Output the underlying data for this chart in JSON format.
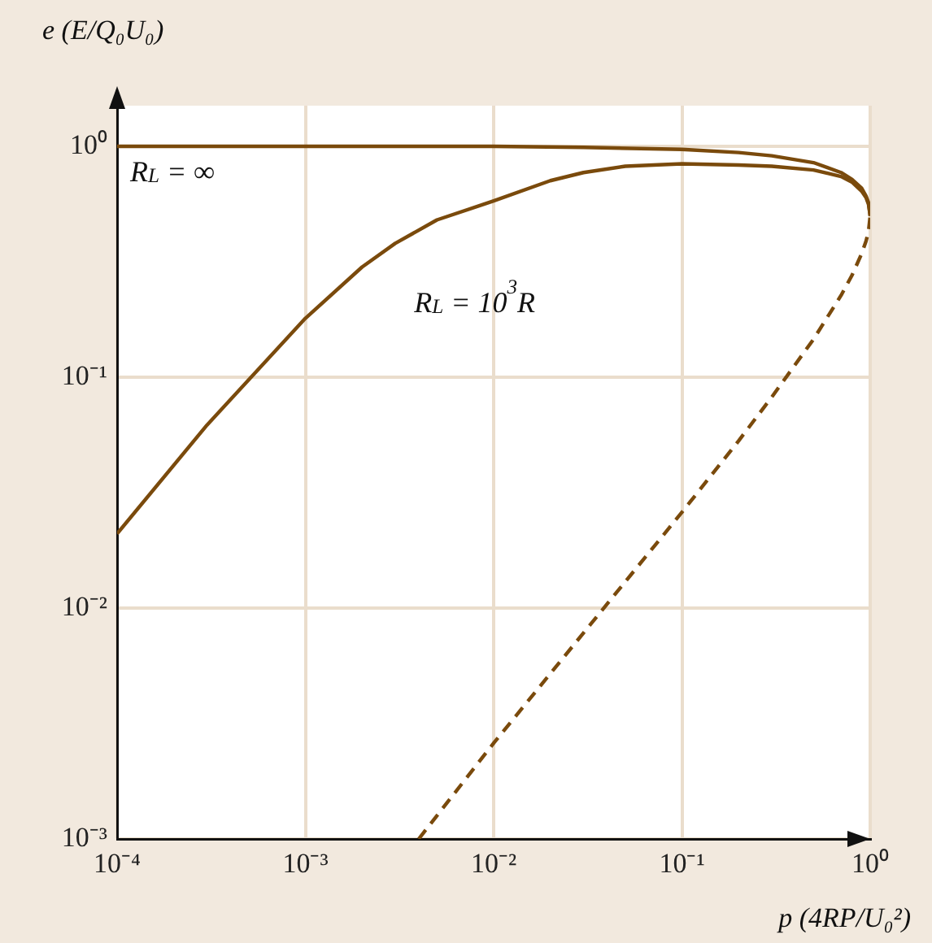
{
  "chart_data": {
    "type": "line",
    "xlabel": "p (4RP/U₀²)",
    "ylabel": "e (E/Q₀U₀)",
    "log": "xy",
    "grid": true,
    "legend": false,
    "marker": "none",
    "xlim": [
      0.0001,
      1
    ],
    "ylim": [
      0.001,
      1.5
    ],
    "xticks": [
      {
        "value": 0.0001,
        "label": "10⁻⁴"
      },
      {
        "value": 0.001,
        "label": "10⁻³"
      },
      {
        "value": 0.01,
        "label": "10⁻²"
      },
      {
        "value": 0.1,
        "label": "10⁻¹"
      },
      {
        "value": 1,
        "label": "10⁰"
      }
    ],
    "yticks": [
      {
        "value": 0.001,
        "label": "10⁻³"
      },
      {
        "value": 0.01,
        "label": "10⁻²"
      },
      {
        "value": 0.1,
        "label": "10⁻¹"
      },
      {
        "value": 1,
        "label": "10⁰"
      }
    ],
    "series": [
      {
        "name": "R$_{L}$ = ∞",
        "color": "#7a4a0c",
        "line_style": "solid",
        "x": [
          0.0001,
          0.001,
          0.01,
          0.03,
          0.1,
          0.2,
          0.3,
          0.5,
          0.7,
          0.8,
          0.9,
          0.95,
          0.98,
          1
        ],
        "values": [
          1,
          1,
          1,
          0.99,
          0.97,
          0.94,
          0.91,
          0.85,
          0.77,
          0.72,
          0.66,
          0.61,
          0.57,
          0.5
        ]
      },
      {
        "name": "R$_{L}$ = 10$^{3}$R",
        "color": "#7a4a0c",
        "line_style": "solid",
        "x": [
          0.0001,
          0.0003,
          0.001,
          0.002,
          0.003,
          0.005,
          0.01,
          0.02,
          0.03,
          0.05,
          0.1,
          0.2,
          0.3,
          0.5,
          0.7,
          0.8,
          0.9,
          0.95,
          0.98,
          1
        ],
        "values": [
          0.021,
          0.062,
          0.18,
          0.3,
          0.38,
          0.48,
          0.58,
          0.71,
          0.77,
          0.82,
          0.84,
          0.83,
          0.82,
          0.79,
          0.74,
          0.7,
          0.64,
          0.6,
          0.56,
          0.5
        ]
      },
      {
        "color": "#7a4a0c",
        "line_style": "dashed",
        "x": [
          0.004,
          0.01,
          0.03,
          0.1,
          0.2,
          0.3,
          0.5,
          0.7,
          0.8,
          0.9,
          0.95,
          0.98,
          1
        ],
        "values": [
          0.001,
          0.0026,
          0.0078,
          0.026,
          0.053,
          0.082,
          0.146,
          0.226,
          0.276,
          0.342,
          0.388,
          0.429,
          0.5
        ]
      }
    ]
  }
}
